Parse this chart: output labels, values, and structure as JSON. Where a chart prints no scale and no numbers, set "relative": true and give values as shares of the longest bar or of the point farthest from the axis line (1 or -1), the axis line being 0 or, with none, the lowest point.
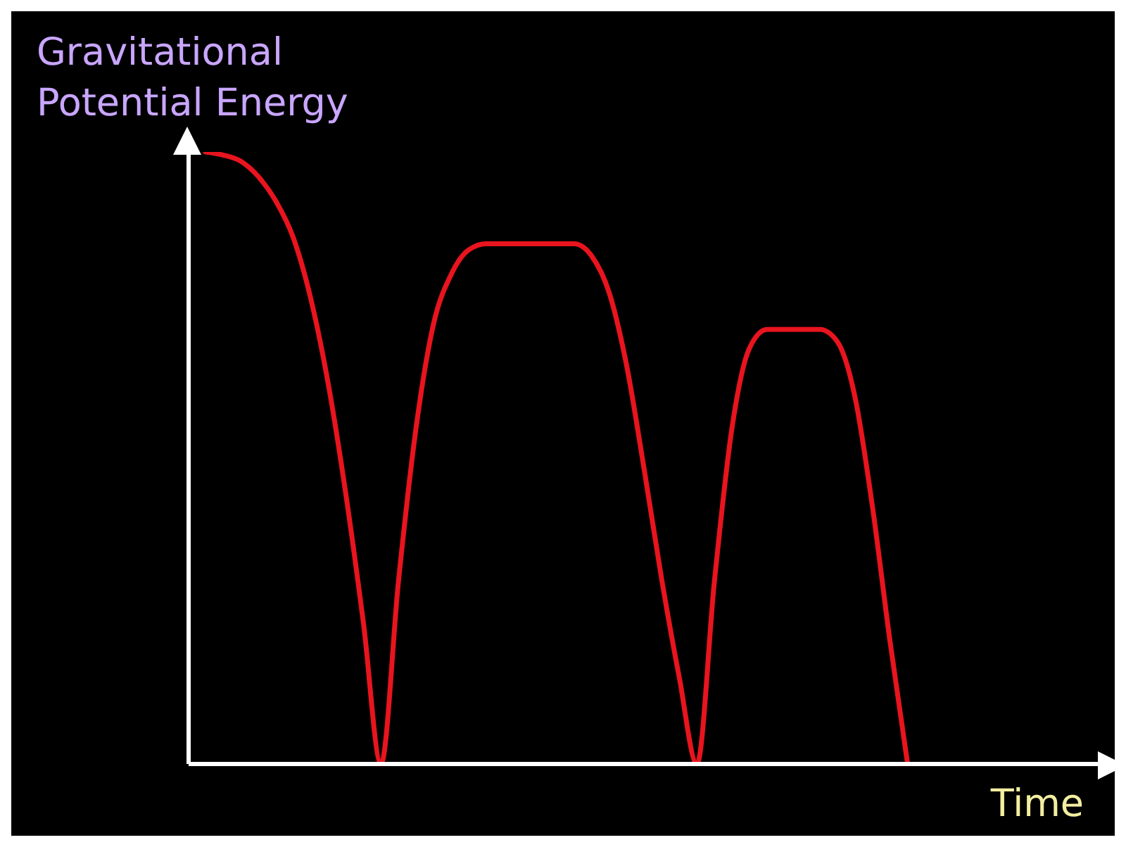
{
  "chart_data": {
    "type": "line",
    "relative": true,
    "xlabel": "Time",
    "ylabel": "Gravitational Potential Energy",
    "categories": [
      null,
      null,
      null,
      null,
      null,
      null,
      null,
      null,
      null,
      null,
      null,
      null,
      null,
      null,
      null,
      null,
      null,
      null,
      null,
      null,
      null,
      null,
      null,
      null,
      null,
      null,
      null,
      null,
      null,
      null,
      null,
      null,
      null,
      null,
      null,
      null,
      null,
      null,
      null,
      null,
      null,
      null,
      null,
      null,
      null,
      null,
      null,
      null,
      null,
      null,
      null,
      null
    ],
    "series": [
      {
        "color": "#e8141e",
        "values": [
          1.0,
          0.995,
          0.985,
          0.96,
          0.92,
          0.86,
          0.76,
          0.62,
          0.44,
          0.23,
          0,
          0.3,
          0.55,
          0.72,
          0.8,
          0.84,
          0.85,
          0.85,
          0.85,
          0.85,
          0.85,
          0.85,
          0.83,
          0.77,
          0.65,
          0.48,
          0.3,
          0.14,
          0,
          0.3,
          0.55,
          0.68,
          0.71,
          0.71,
          0.71,
          0.71,
          0.69,
          0.6,
          0.42,
          0.2,
          0,
          null,
          null,
          null,
          null,
          null,
          null,
          null,
          null,
          null,
          null,
          null
        ]
      }
    ],
    "grid": false,
    "legend": false,
    "marker": "none",
    "line_style": "solid"
  }
}
